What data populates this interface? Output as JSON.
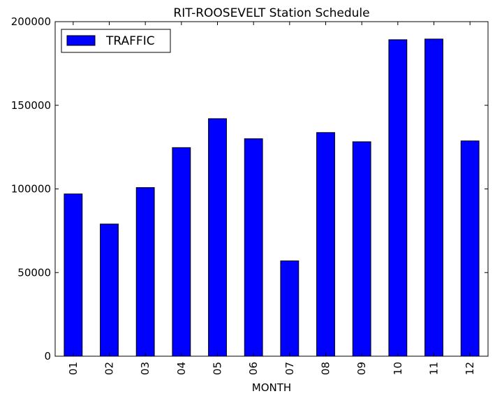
{
  "chart_data": {
    "type": "bar",
    "title": "RIT-ROOSEVELT Station Schedule",
    "xlabel": "MONTH",
    "ylabel": "",
    "categories": [
      "01",
      "02",
      "03",
      "04",
      "05",
      "06",
      "07",
      "08",
      "09",
      "10",
      "11",
      "12"
    ],
    "series": [
      {
        "name": "TRAFFIC",
        "values": [
          97000,
          79000,
          100800,
          124700,
          142000,
          130000,
          57000,
          133700,
          128200,
          189200,
          189600,
          128700
        ],
        "color": "#0000ff"
      }
    ],
    "ylim": [
      0,
      200000
    ],
    "yticks": [
      0,
      50000,
      100000,
      150000,
      200000
    ],
    "ytick_labels": [
      "0",
      "50000",
      "100000",
      "150000",
      "200000"
    ],
    "grid": false,
    "legend_position": "top-left"
  }
}
